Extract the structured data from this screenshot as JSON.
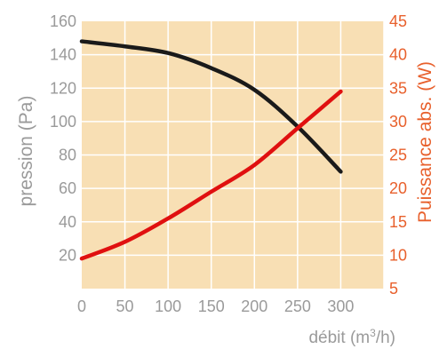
{
  "chart_data": {
    "type": "line",
    "xlabel_main": "débit (m",
    "xlabel_sup": "3",
    "xlabel_end": "/h)",
    "ylabel_left": "pression (Pa)",
    "ylabel_right": "Puissance abs. (W)",
    "xlim": [
      0,
      350
    ],
    "ylim_left": [
      0,
      160
    ],
    "ylim_right": [
      5,
      45
    ],
    "x_ticks": [
      "0",
      "50",
      "100",
      "150",
      "200",
      "250",
      "300"
    ],
    "x_tick_values": [
      0,
      50,
      100,
      150,
      200,
      250,
      300
    ],
    "y_left_ticks": [
      "20",
      "40",
      "60",
      "80",
      "100",
      "120",
      "140",
      "160"
    ],
    "y_left_tick_values": [
      20,
      40,
      60,
      80,
      100,
      120,
      140,
      160
    ],
    "y_right_ticks": [
      "5",
      "10",
      "15",
      "20",
      "25",
      "30",
      "35",
      "40",
      "45"
    ],
    "y_right_tick_values": [
      5,
      10,
      15,
      20,
      25,
      30,
      35,
      40,
      45
    ],
    "grid": true,
    "series": [
      {
        "axis": "left",
        "color": "#1a1a1a",
        "x": [
          0,
          50,
          100,
          150,
          200,
          250,
          300
        ],
        "values": [
          148,
          145,
          141,
          132,
          119,
          97,
          70
        ]
      },
      {
        "axis": "right",
        "color": "#e01010",
        "x": [
          0,
          50,
          100,
          150,
          200,
          250,
          300
        ],
        "values": [
          9.5,
          12,
          15.5,
          19.5,
          23.5,
          29,
          34.5
        ]
      }
    ]
  },
  "colors": {
    "plot_background": "#f8dfb4",
    "grid": "#ffffff",
    "axis_text": "#9a9a9a",
    "right_axis_text": "#e8602c"
  }
}
